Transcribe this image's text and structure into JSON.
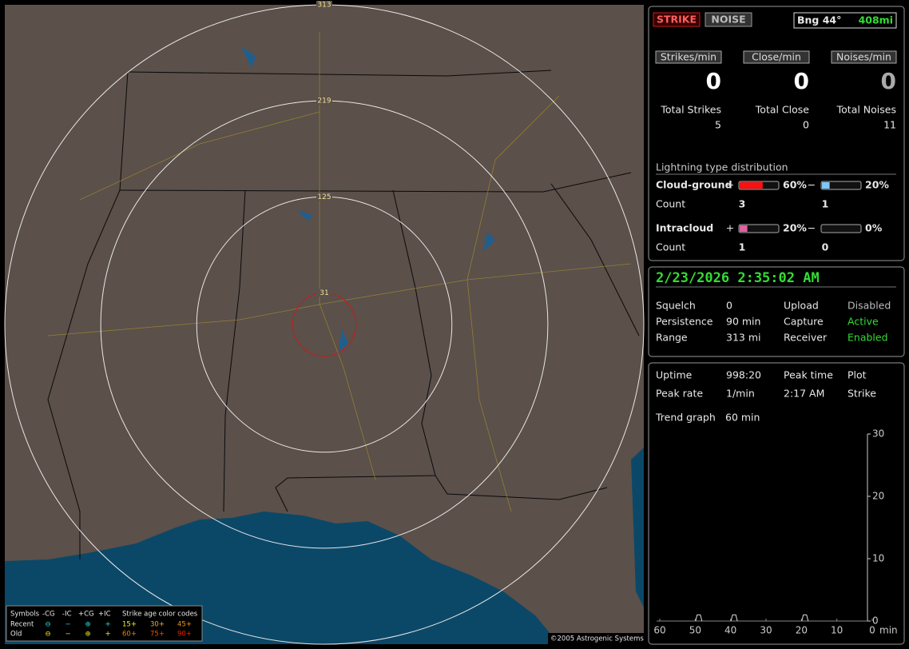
{
  "header": {
    "strike": "STRIKE",
    "noise": "NOISE",
    "bearing": "Bng 44°",
    "distance": "408mi"
  },
  "rates": [
    {
      "label": "Strikes/min",
      "value": 0
    },
    {
      "label": "Close/min",
      "value": 0
    },
    {
      "label": "Noises/min",
      "value": 0
    }
  ],
  "totals": [
    {
      "label": "Total Strikes",
      "value": 5
    },
    {
      "label": "Total Close",
      "value": 0
    },
    {
      "label": "Total Noises",
      "value": 11
    }
  ],
  "distribution": {
    "title": "Lightning type distribution",
    "count_label": "Count",
    "rows": [
      {
        "label": "Cloud-ground",
        "plus": {
          "sign": "+",
          "percent": {
            "value": 60,
            "label": "60%"
          },
          "count": 3,
          "color": "#ff1010"
        },
        "minus": {
          "sign": "−",
          "percent": {
            "value": 20,
            "label": "20%"
          },
          "count": 1,
          "color": "#80c8f4"
        }
      },
      {
        "label": "Intracloud",
        "plus": {
          "sign": "+",
          "percent": {
            "value": 20,
            "label": "20%"
          },
          "count": 1,
          "color": "#e060a0"
        },
        "minus": {
          "sign": "−",
          "percent": {
            "value": 0,
            "label": "0%"
          },
          "count": 0,
          "color": "#80c8f4"
        }
      }
    ]
  },
  "status": {
    "datetime": "2/23/2026 2:35:02 AM",
    "rows": [
      [
        "Squelch",
        "0",
        "Upload",
        "Disabled"
      ],
      [
        "Persistence",
        "90 min",
        "Capture",
        "Active"
      ],
      [
        "Range",
        "313 mi",
        "Receiver",
        "Enabled"
      ]
    ]
  },
  "stats": {
    "rows": [
      [
        "Uptime",
        "998:20",
        "Peak time",
        "Plot"
      ],
      [
        "Peak rate",
        "1/min",
        "2:17 AM",
        "Strike"
      ]
    ],
    "trend_label": "Trend graph",
    "trend_window": "60 min"
  },
  "trend": {
    "xlim": [
      60,
      0
    ],
    "ylim": [
      0,
      30
    ],
    "xticks": [
      60,
      50,
      40,
      30,
      20,
      10,
      0
    ],
    "yticks": [
      0,
      10,
      20,
      30
    ],
    "x_unit": "min",
    "x": [
      49,
      39,
      19
    ],
    "values": [
      1,
      1,
      1
    ]
  },
  "map": {
    "rings": [
      313,
      219,
      125,
      31
    ]
  },
  "legend": {
    "title": "Symbols",
    "columns": [
      "-CG",
      "-IC",
      "+CG",
      "+IC"
    ],
    "age_title": "Strike age color codes",
    "rows": [
      {
        "label": "Recent",
        "symbols": [
          "⊖",
          "−",
          "⊕",
          "+"
        ],
        "ages": [
          "15+",
          "30+",
          "45+"
        ]
      },
      {
        "label": "Old",
        "symbols": [
          "⊖",
          "−",
          "⊕",
          "+"
        ],
        "ages": [
          "60+",
          "75+",
          "90+"
        ]
      }
    ]
  },
  "copyright": "©2005 Astrogenic Systems"
}
